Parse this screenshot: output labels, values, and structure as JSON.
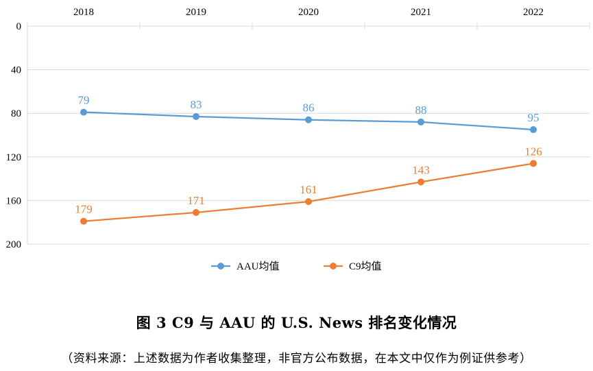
{
  "chart_data": {
    "type": "line",
    "categories": [
      "2018",
      "2019",
      "2020",
      "2021",
      "2022"
    ],
    "series": [
      {
        "name": "AAU均值",
        "values": [
          79,
          83,
          86,
          88,
          95
        ],
        "color": "#5b9bd5"
      },
      {
        "name": "C9均值",
        "values": [
          179,
          171,
          161,
          143,
          126
        ],
        "color": "#ed7d31"
      }
    ],
    "data_labels": {
      "AAU均值": [
        "79",
        "83",
        "86",
        "88",
        "95"
      ],
      "C9均值": [
        "179",
        "171",
        "161",
        "143",
        "126"
      ]
    },
    "y_ticks": [
      0,
      40,
      80,
      120,
      160,
      200
    ],
    "ylim": [
      0,
      200
    ],
    "y_inverted": true,
    "x_axis_position": "top",
    "grid": true,
    "legend_position": "bottom"
  },
  "caption": {
    "title": "图 3  C9 与 AAU 的 U.S. News 排名变化情况",
    "source": "（资料来源：上述数据为作者收集整理，非官方公布数据，在本文中仅作为例证供参考）"
  }
}
